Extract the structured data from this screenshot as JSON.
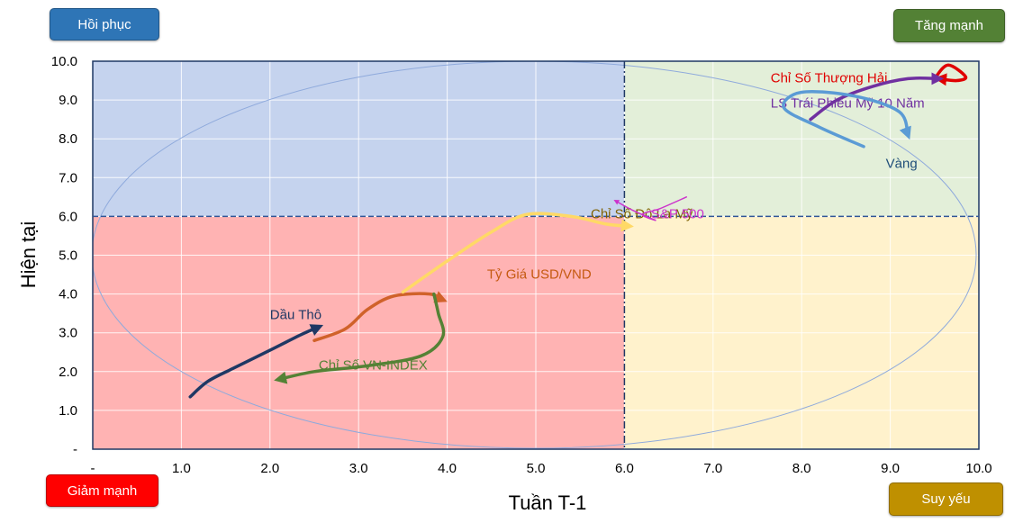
{
  "buttons": {
    "recover": "Hồi phục",
    "strong": "Tăng mạnh",
    "weak": "Giảm mạnh",
    "decline": "Suy yếu"
  },
  "chart_data": {
    "type": "line",
    "xlabel": "Tuần T-1",
    "ylabel": "Hiện tại",
    "xlim": [
      0,
      10
    ],
    "ylim": [
      0,
      10
    ],
    "x_ticks": [
      "-",
      "1.0",
      "2.0",
      "3.0",
      "4.0",
      "5.0",
      "6.0",
      "7.0",
      "8.0",
      "9.0",
      "10.0"
    ],
    "y_ticks": [
      "-",
      "1.0",
      "2.0",
      "3.0",
      "4.0",
      "5.0",
      "6.0",
      "7.0",
      "8.0",
      "9.0",
      "10.0"
    ],
    "grid": true,
    "quadrants": [
      {
        "x": [
          0,
          6
        ],
        "y": [
          6,
          10
        ],
        "color": "#c5d3ee"
      },
      {
        "x": [
          6,
          10
        ],
        "y": [
          6,
          10
        ],
        "color": "#e3efd9"
      },
      {
        "x": [
          0,
          6
        ],
        "y": [
          0,
          6
        ],
        "color": "#ffb3b3"
      },
      {
        "x": [
          6,
          10
        ],
        "y": [
          0,
          6
        ],
        "color": "#fff2cc"
      }
    ],
    "series": [
      {
        "name": "Dầu Thô",
        "color": "#1f3864",
        "points": [
          [
            1.1,
            1.35
          ],
          [
            1.3,
            1.75
          ],
          [
            1.6,
            2.1
          ],
          [
            2.0,
            2.55
          ],
          [
            2.35,
            2.95
          ],
          [
            2.55,
            3.15
          ]
        ],
        "label_pos": [
          2.0,
          3.35
        ],
        "label_color": "#1f3864"
      },
      {
        "name": "Tỷ Giá USD/VND",
        "color": "#d0622a",
        "points": [
          [
            2.5,
            2.8
          ],
          [
            2.85,
            3.1
          ],
          [
            3.1,
            3.6
          ],
          [
            3.4,
            3.95
          ],
          [
            3.8,
            4.0
          ],
          [
            3.95,
            3.85
          ]
        ],
        "label_pos": [
          4.45,
          4.4
        ],
        "label_color": "#c55a11"
      },
      {
        "name": "Chỉ Số VN-INDEX",
        "color": "#548235",
        "points": [
          [
            3.85,
            4.0
          ],
          [
            3.9,
            3.5
          ],
          [
            3.95,
            2.9
          ],
          [
            3.7,
            2.4
          ],
          [
            3.1,
            2.15
          ],
          [
            2.5,
            2.0
          ],
          [
            2.1,
            1.8
          ]
        ],
        "label_pos": [
          2.55,
          2.05
        ],
        "label_color": "#548235"
      },
      {
        "name": "Chỉ Số Đô La Mỹ",
        "color": "#ffd966",
        "points": [
          [
            3.5,
            4.05
          ],
          [
            4.0,
            4.85
          ],
          [
            4.5,
            5.6
          ],
          [
            4.9,
            6.05
          ],
          [
            5.4,
            6.0
          ],
          [
            5.8,
            5.8
          ],
          [
            6.05,
            5.75
          ]
        ],
        "label_pos": [
          5.62,
          5.95
        ],
        "label_color": "#7f6000"
      },
      {
        "name": "S&P 500",
        "color": "#cc33cc",
        "points": [
          [
            6.7,
            6.5
          ],
          [
            6.4,
            6.2
          ],
          [
            6.2,
            6.05
          ],
          [
            6.35,
            5.9
          ],
          [
            6.1,
            6.15
          ],
          [
            5.9,
            6.4
          ]
        ],
        "label_pos": [
          6.3,
          5.95
        ],
        "label_color": "#cc33cc"
      },
      {
        "name": "Chỉ Số Thượng Hải",
        "color": "#e00000",
        "points": [
          [
            9.5,
            9.55
          ],
          [
            9.65,
            9.9
          ],
          [
            9.85,
            9.6
          ],
          [
            9.75,
            9.5
          ],
          [
            9.55,
            9.55
          ]
        ],
        "label_pos": [
          7.65,
          9.45
        ],
        "label_color": "#e00000"
      },
      {
        "name": "LS Trái Phiếu Mỹ 10 Năm",
        "color": "#7030a0",
        "points": [
          [
            8.1,
            8.5
          ],
          [
            8.4,
            9.0
          ],
          [
            8.8,
            9.35
          ],
          [
            9.2,
            9.55
          ],
          [
            9.55,
            9.55
          ]
        ],
        "label_pos": [
          7.65,
          8.8
        ],
        "label_color": "#7030a0"
      },
      {
        "name": "Vàng",
        "color": "#5b9bd5",
        "points": [
          [
            8.7,
            7.8
          ],
          [
            8.2,
            8.3
          ],
          [
            7.8,
            8.8
          ],
          [
            8.0,
            9.2
          ],
          [
            8.6,
            9.1
          ],
          [
            9.1,
            8.7
          ],
          [
            9.2,
            8.1
          ]
        ],
        "label_pos": [
          8.95,
          7.25
        ],
        "label_color": "#1f4e79"
      }
    ]
  }
}
